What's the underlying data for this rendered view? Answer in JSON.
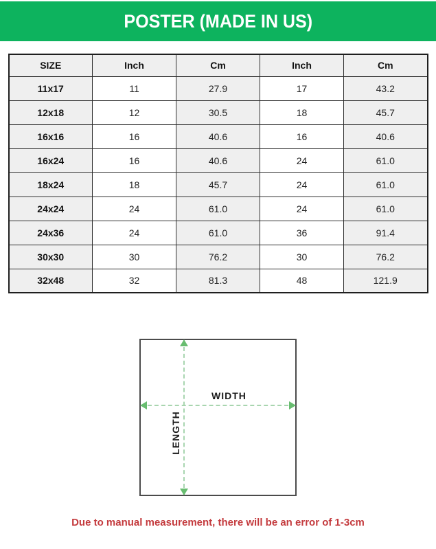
{
  "header": {
    "title": "POSTER (MADE IN US)"
  },
  "chart_data": {
    "type": "table",
    "title": "POSTER (MADE IN US)",
    "columns": [
      "SIZE",
      "Inch",
      "Cm",
      "Inch",
      "Cm"
    ],
    "rows": [
      [
        "11x17",
        "11",
        "27.9",
        "17",
        "43.2"
      ],
      [
        "12x18",
        "12",
        "30.5",
        "18",
        "45.7"
      ],
      [
        "16x16",
        "16",
        "40.6",
        "16",
        "40.6"
      ],
      [
        "16x24",
        "16",
        "40.6",
        "24",
        "61.0"
      ],
      [
        "18x24",
        "18",
        "45.7",
        "24",
        "61.0"
      ],
      [
        "24x24",
        "24",
        "61.0",
        "24",
        "61.0"
      ],
      [
        "24x36",
        "24",
        "61.0",
        "36",
        "91.4"
      ],
      [
        "30x30",
        "30",
        "76.2",
        "30",
        "76.2"
      ],
      [
        "32x48",
        "32",
        "81.3",
        "48",
        "121.9"
      ]
    ]
  },
  "diagram": {
    "width_label": "WIDTH",
    "length_label": "LENGTH"
  },
  "footer": {
    "note": "Due to manual measurement, there will be an error of 1-3cm"
  },
  "colors": {
    "banner_green": "#0db35e",
    "dash_green": "#a8d5af",
    "arrow_green": "#68bd70",
    "note_red": "#c43b3e",
    "cell_gray": "#efefef"
  }
}
